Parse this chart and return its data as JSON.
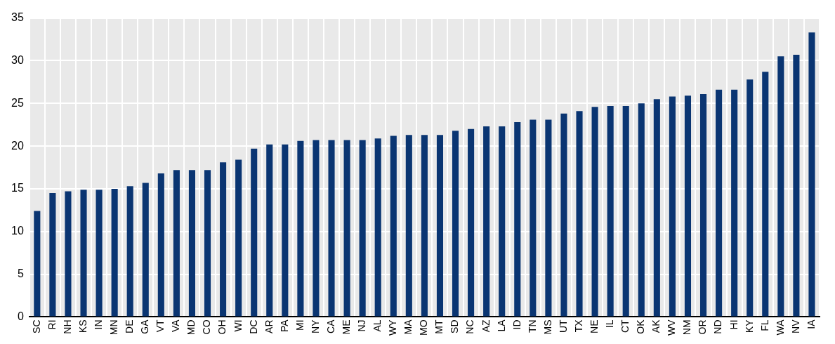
{
  "chart_data": {
    "type": "bar",
    "categories": [
      "SC",
      "RI",
      "NH",
      "KS",
      "IN",
      "MN",
      "DE",
      "GA",
      "VT",
      "VA",
      "MD",
      "CO",
      "OH",
      "WI",
      "DC",
      "AR",
      "PA",
      "MI",
      "NY",
      "CA",
      "ME",
      "NJ",
      "AL",
      "WY",
      "MA",
      "MO",
      "MT",
      "SD",
      "NC",
      "AZ",
      "LA",
      "ID",
      "TN",
      "MS",
      "UT",
      "TX",
      "NE",
      "IL",
      "CT",
      "OK",
      "AK",
      "WV",
      "NM",
      "OR",
      "ND",
      "HI",
      "KY",
      "FL",
      "WA",
      "NV",
      "IA"
    ],
    "values": [
      12.4,
      14.5,
      14.7,
      14.9,
      14.9,
      15.0,
      15.3,
      15.7,
      16.8,
      17.2,
      17.2,
      17.2,
      18.1,
      18.4,
      19.7,
      20.2,
      20.2,
      20.6,
      20.7,
      20.7,
      20.7,
      20.7,
      20.9,
      21.2,
      21.3,
      21.3,
      21.3,
      21.8,
      22.0,
      22.3,
      22.3,
      22.8,
      23.1,
      23.1,
      23.8,
      24.1,
      24.6,
      24.7,
      24.7,
      25.0,
      25.5,
      25.8,
      25.9,
      26.1,
      26.6,
      26.6,
      27.8,
      28.7,
      30.5,
      30.7,
      33.3
    ],
    "color": "#0a3572",
    "ylim": [
      0,
      35
    ],
    "yticks": [
      0,
      5,
      10,
      15,
      20,
      25,
      30,
      35
    ],
    "grid": true,
    "legend": false
  }
}
